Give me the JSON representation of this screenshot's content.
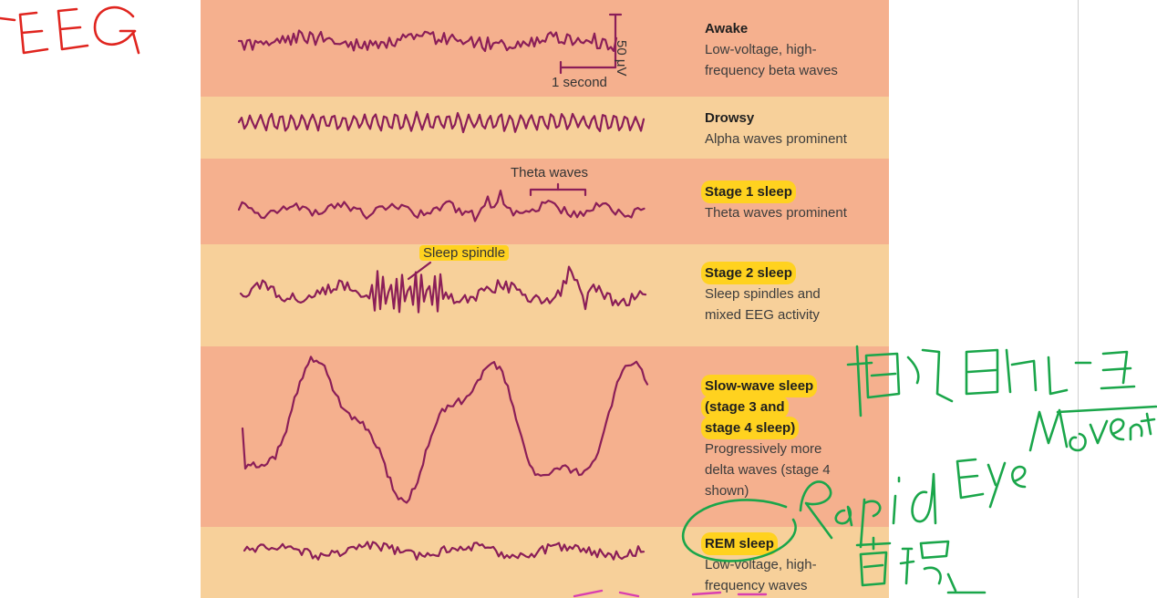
{
  "stages": [
    {
      "id": "awake",
      "title": "Awake",
      "desc": [
        "Low-voltage, high-",
        "frequency beta waves"
      ],
      "highlight": false
    },
    {
      "id": "drowsy",
      "title": "Drowsy",
      "desc": [
        "Alpha waves prominent"
      ],
      "highlight": false
    },
    {
      "id": "stage1",
      "title": "Stage 1 sleep",
      "desc": [
        "Theta waves prominent"
      ],
      "highlight": true
    },
    {
      "id": "stage2",
      "title": "Stage 2 sleep",
      "desc": [
        "Sleep spindles and",
        "mixed EEG activity"
      ],
      "highlight": true
    },
    {
      "id": "sws",
      "title": [
        "Slow-wave sleep",
        "(stage 3 and",
        "stage 4 sleep)"
      ],
      "desc": [
        "Progressively more",
        "delta waves (stage 4",
        "shown)"
      ],
      "highlight": true
    },
    {
      "id": "rem",
      "title": "REM sleep",
      "desc": [
        "Low-voltage, high-",
        "frequency waves"
      ],
      "highlight": true
    }
  ],
  "annotations": {
    "time_scale": "1 second",
    "voltage_scale": "50 μV",
    "theta": "Theta waves",
    "spindle": "Sleep spindle"
  },
  "colors": {
    "band_dark": "#f5b08e",
    "band_light": "#f7d09a",
    "wave": "#8b1e58",
    "highlight": "#ffd21f",
    "ink_red": "#e0251f",
    "ink_green": "#1aa64a"
  }
}
